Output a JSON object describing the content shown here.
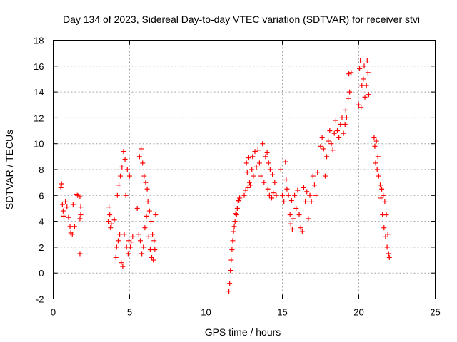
{
  "chart_data": {
    "type": "scatter",
    "title": "Day 134 of 2023, Sidereal Day-to-day VTEC variation (SDTVAR) for receiver stvi",
    "xlabel": "GPS time / hours",
    "ylabel": "SDTVAR / TECUs",
    "xlim": [
      0,
      25
    ],
    "ylim": [
      -2,
      18
    ],
    "xticks": [
      0,
      5,
      10,
      15,
      20,
      25
    ],
    "yticks": [
      -2,
      0,
      2,
      4,
      6,
      8,
      10,
      12,
      14,
      16,
      18
    ],
    "grid": true,
    "marker": "+",
    "color": "#ff0000",
    "series": [
      {
        "name": "SDTVAR",
        "points": [
          [
            0.5,
            6.6
          ],
          [
            0.55,
            6.9
          ],
          [
            0.6,
            5.3
          ],
          [
            0.65,
            4.8
          ],
          [
            0.7,
            4.4
          ],
          [
            0.8,
            5.5
          ],
          [
            0.9,
            5.1
          ],
          [
            1.0,
            4.3
          ],
          [
            1.1,
            3.6
          ],
          [
            1.15,
            3.1
          ],
          [
            1.25,
            3.0
          ],
          [
            1.3,
            5.3
          ],
          [
            1.4,
            3.6
          ],
          [
            1.5,
            6.1
          ],
          [
            1.6,
            6.0
          ],
          [
            1.75,
            5.9
          ],
          [
            1.8,
            5.1
          ],
          [
            1.75,
            4.2
          ],
          [
            1.8,
            4.5
          ],
          [
            1.75,
            1.5
          ],
          [
            3.6,
            4.0
          ],
          [
            3.65,
            5.1
          ],
          [
            3.7,
            4.5
          ],
          [
            3.75,
            3.5
          ],
          [
            3.8,
            3.8
          ],
          [
            4.0,
            4.1
          ],
          [
            4.1,
            1.2
          ],
          [
            4.15,
            2.0
          ],
          [
            4.2,
            6.0
          ],
          [
            4.25,
            2.5
          ],
          [
            4.3,
            6.8
          ],
          [
            4.35,
            3.0
          ],
          [
            4.4,
            7.5
          ],
          [
            4.45,
            0.8
          ],
          [
            4.5,
            8.2
          ],
          [
            4.55,
            0.5
          ],
          [
            4.6,
            9.4
          ],
          [
            4.65,
            3.0
          ],
          [
            4.7,
            8.8
          ],
          [
            4.75,
            6.0
          ],
          [
            4.8,
            2.0
          ],
          [
            4.85,
            8.0
          ],
          [
            4.9,
            1.5
          ],
          [
            4.95,
            2.5
          ],
          [
            5.0,
            7.5
          ],
          [
            5.05,
            2.0
          ],
          [
            5.1,
            2.4
          ],
          [
            5.2,
            2.8
          ],
          [
            5.5,
            5.0
          ],
          [
            5.6,
            3.0
          ],
          [
            5.65,
            9.0
          ],
          [
            5.7,
            2.5
          ],
          [
            5.75,
            9.6
          ],
          [
            5.8,
            1.5
          ],
          [
            5.85,
            8.5
          ],
          [
            5.9,
            2.0
          ],
          [
            5.95,
            7.5
          ],
          [
            6.0,
            3.5
          ],
          [
            6.05,
            7.0
          ],
          [
            6.1,
            4.4
          ],
          [
            6.15,
            6.5
          ],
          [
            6.2,
            5.5
          ],
          [
            6.25,
            2.8
          ],
          [
            6.3,
            4.8
          ],
          [
            6.35,
            1.8
          ],
          [
            6.4,
            4.0
          ],
          [
            6.45,
            1.2
          ],
          [
            6.5,
            3.0
          ],
          [
            6.55,
            1.0
          ],
          [
            6.6,
            2.5
          ],
          [
            6.65,
            1.8
          ],
          [
            6.7,
            4.5
          ],
          [
            11.5,
            -1.4
          ],
          [
            11.55,
            -0.8
          ],
          [
            11.6,
            0.2
          ],
          [
            11.65,
            1.0
          ],
          [
            11.7,
            1.8
          ],
          [
            11.75,
            2.5
          ],
          [
            11.8,
            3.2
          ],
          [
            11.85,
            3.6
          ],
          [
            11.9,
            4.0
          ],
          [
            11.95,
            4.6
          ],
          [
            12.0,
            4.5
          ],
          [
            12.05,
            5.0
          ],
          [
            12.1,
            5.5
          ],
          [
            12.15,
            5.6
          ],
          [
            12.2,
            5.8
          ],
          [
            12.5,
            6.0
          ],
          [
            12.6,
            6.4
          ],
          [
            12.65,
            8.5
          ],
          [
            12.7,
            7.8
          ],
          [
            12.75,
            6.6
          ],
          [
            12.8,
            8.9
          ],
          [
            12.85,
            7.0
          ],
          [
            12.9,
            6.8
          ],
          [
            13.0,
            8.0
          ],
          [
            13.05,
            9.0
          ],
          [
            13.1,
            7.5
          ],
          [
            13.2,
            9.4
          ],
          [
            13.3,
            8.2
          ],
          [
            13.4,
            9.5
          ],
          [
            13.5,
            8.5
          ],
          [
            13.6,
            7.5
          ],
          [
            13.7,
            10.0
          ],
          [
            13.8,
            7.0
          ],
          [
            13.9,
            9.0
          ],
          [
            14.0,
            9.3
          ],
          [
            14.05,
            6.5
          ],
          [
            14.1,
            8.5
          ],
          [
            14.15,
            6.0
          ],
          [
            14.2,
            8.0
          ],
          [
            14.3,
            5.8
          ],
          [
            14.35,
            7.6
          ],
          [
            14.4,
            6.2
          ],
          [
            14.5,
            7.0
          ],
          [
            14.6,
            6.0
          ],
          [
            14.9,
            8.0
          ],
          [
            15.0,
            6.0
          ],
          [
            15.1,
            5.5
          ],
          [
            15.2,
            8.6
          ],
          [
            15.25,
            7.2
          ],
          [
            15.3,
            6.5
          ],
          [
            15.4,
            6.0
          ],
          [
            15.5,
            4.5
          ],
          [
            15.55,
            3.8
          ],
          [
            15.6,
            5.6
          ],
          [
            15.65,
            3.4
          ],
          [
            15.7,
            4.2
          ],
          [
            15.8,
            6.0
          ],
          [
            15.9,
            5.0
          ],
          [
            16.0,
            6.4
          ],
          [
            16.1,
            4.5
          ],
          [
            16.2,
            3.5
          ],
          [
            16.3,
            3.2
          ],
          [
            16.4,
            6.6
          ],
          [
            16.5,
            5.5
          ],
          [
            16.6,
            6.3
          ],
          [
            16.7,
            4.2
          ],
          [
            16.8,
            6.0
          ],
          [
            16.9,
            5.5
          ],
          [
            17.0,
            7.5
          ],
          [
            17.1,
            6.8
          ],
          [
            17.2,
            6.0
          ],
          [
            17.3,
            7.8
          ],
          [
            17.5,
            9.8
          ],
          [
            17.6,
            10.5
          ],
          [
            17.7,
            9.6
          ],
          [
            17.8,
            7.5
          ],
          [
            17.9,
            9.0
          ],
          [
            18.0,
            10.2
          ],
          [
            18.1,
            11.0
          ],
          [
            18.2,
            10.0
          ],
          [
            18.3,
            9.5
          ],
          [
            18.4,
            10.8
          ],
          [
            18.5,
            11.8
          ],
          [
            18.6,
            11.0
          ],
          [
            18.7,
            10.5
          ],
          [
            18.8,
            11.5
          ],
          [
            18.9,
            12.0
          ],
          [
            19.0,
            10.8
          ],
          [
            19.1,
            11.5
          ],
          [
            19.15,
            12.6
          ],
          [
            19.2,
            12.0
          ],
          [
            19.3,
            13.5
          ],
          [
            19.35,
            15.4
          ],
          [
            19.4,
            14.0
          ],
          [
            19.5,
            15.5
          ],
          [
            20.0,
            13.0
          ],
          [
            20.05,
            15.8
          ],
          [
            20.1,
            16.4
          ],
          [
            20.15,
            12.8
          ],
          [
            20.2,
            14.5
          ],
          [
            20.3,
            15.0
          ],
          [
            20.35,
            16.0
          ],
          [
            20.4,
            13.6
          ],
          [
            20.5,
            14.5
          ],
          [
            20.55,
            16.4
          ],
          [
            20.6,
            15.5
          ],
          [
            20.65,
            13.8
          ],
          [
            21.0,
            10.5
          ],
          [
            21.05,
            9.8
          ],
          [
            21.1,
            8.5
          ],
          [
            21.15,
            10.2
          ],
          [
            21.2,
            8.0
          ],
          [
            21.25,
            9.0
          ],
          [
            21.3,
            7.5
          ],
          [
            21.4,
            6.8
          ],
          [
            21.45,
            5.8
          ],
          [
            21.5,
            6.5
          ],
          [
            21.55,
            4.5
          ],
          [
            21.6,
            6.0
          ],
          [
            21.65,
            3.5
          ],
          [
            21.7,
            5.5
          ],
          [
            21.75,
            2.8
          ],
          [
            21.8,
            4.5
          ],
          [
            21.85,
            2.0
          ],
          [
            21.9,
            3.0
          ],
          [
            21.95,
            1.5
          ],
          [
            22.0,
            1.2
          ]
        ]
      }
    ]
  }
}
